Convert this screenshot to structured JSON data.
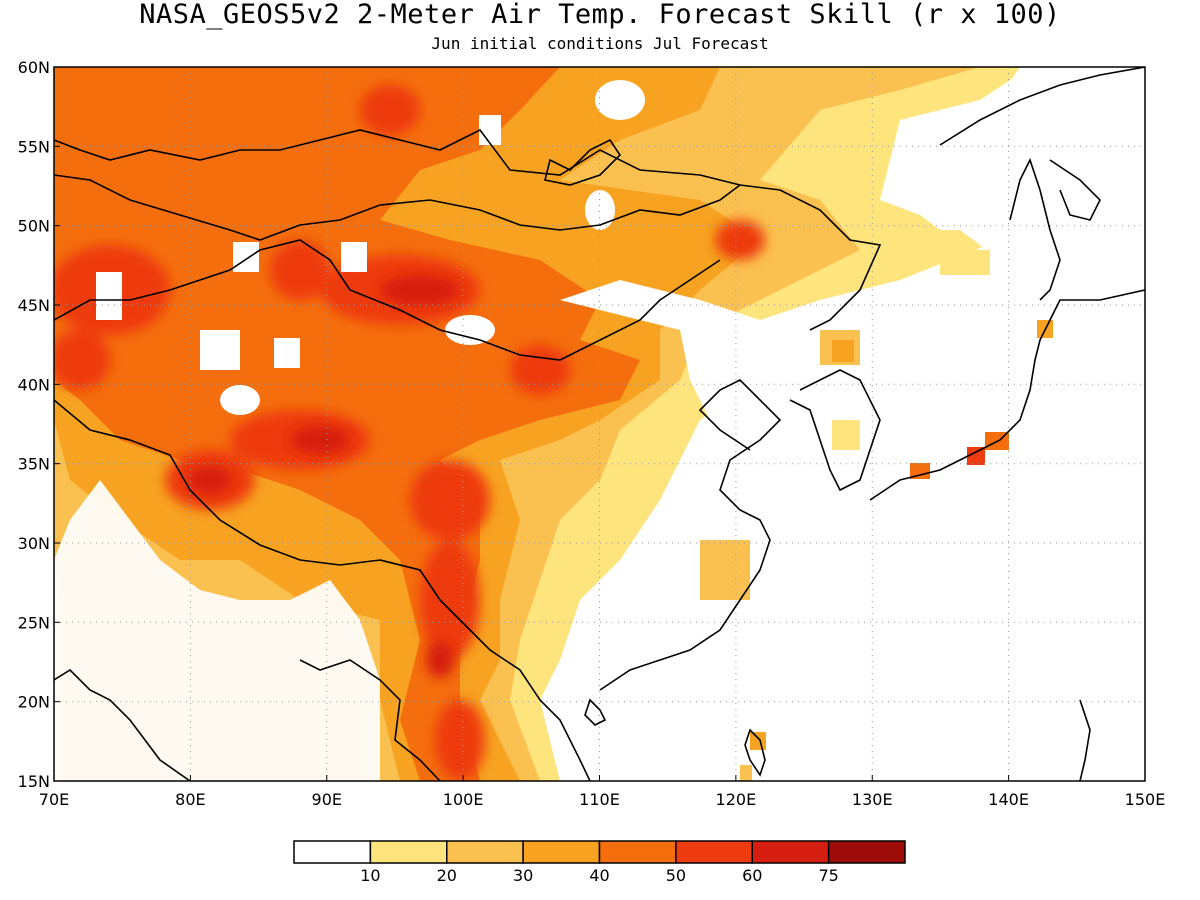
{
  "title": "NASA_GEOS5v2 2-Meter Air Temp. Forecast Skill (r x 100)",
  "subtitle": "Jun initial conditions  Jul Forecast",
  "map": {
    "lon_range": [
      70,
      150
    ],
    "lat_range": [
      15,
      60
    ],
    "lon_ticks": [
      "70E",
      "80E",
      "90E",
      "100E",
      "110E",
      "120E",
      "130E",
      "140E",
      "150E"
    ],
    "lat_ticks": [
      "15N",
      "20N",
      "25N",
      "30N",
      "35N",
      "40N",
      "45N",
      "50N",
      "55N",
      "60N"
    ],
    "grid": "dotted"
  },
  "colorbar": {
    "labels": [
      "10",
      "20",
      "30",
      "40",
      "50",
      "60",
      "75"
    ],
    "colors": [
      "#ffffff",
      "#fde47c",
      "#fbc150",
      "#f7a321",
      "#f46e0e",
      "#ee3b0f",
      "#d61e10",
      "#9e0c0a"
    ]
  }
}
